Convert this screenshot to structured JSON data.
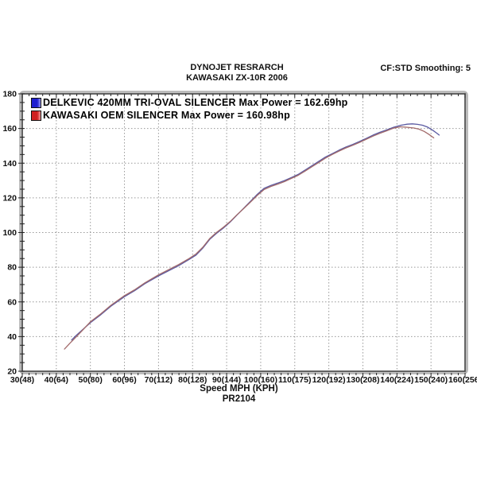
{
  "header": {
    "title_line1": "DYNOJET RESRARCH",
    "title_line2": "KAWASAKI ZX-10R 2006",
    "correction_info": "CF:STD Smoothing: 5"
  },
  "footer": {
    "xlabel": "Speed MPH (KPH)",
    "run_id": "PR2104"
  },
  "legend": {
    "position": "top-left-inside",
    "items": [
      {
        "label": "DELKEVIC 420MM TRI-OVAL SILENCER Max Power  = 162.69hp",
        "swatch_color": "#1f1fd0",
        "swatch_color_light": "#9a9af2"
      },
      {
        "label": "KAWASAKI OEM SILENCER Max Power = 160.98hp",
        "swatch_color": "#d01f1f",
        "swatch_color_light": "#f29a9a"
      }
    ]
  },
  "chart_data": {
    "type": "line",
    "title": "DYNOJET RESRARCH",
    "subtitle": "KAWASAKI ZX-10R 2006",
    "annotations": [
      "CF:STD Smoothing: 5",
      "PR2104"
    ],
    "xlabel": "Speed MPH (KPH)",
    "ylabel": "",
    "x_range": [
      30,
      160
    ],
    "y_range": [
      20,
      180
    ],
    "x_major_step": 10,
    "x_minor_step": 2,
    "y_major_step": 20,
    "y_minor_step": 5,
    "grid": "dotted gray at major ticks",
    "frame_color": "#3c3c3c",
    "bevel_color": "#b4b4b4",
    "grid_color": "#999999",
    "x_ticks": [
      {
        "mph": 30,
        "label": "30(48)"
      },
      {
        "mph": 40,
        "label": "40(64)"
      },
      {
        "mph": 50,
        "label": "50(80)"
      },
      {
        "mph": 60,
        "label": "60(96)"
      },
      {
        "mph": 70,
        "label": "70(112)"
      },
      {
        "mph": 80,
        "label": "80(128)"
      },
      {
        "mph": 90,
        "label": "90(144)"
      },
      {
        "mph": 100,
        "label": "100(160)"
      },
      {
        "mph": 110,
        "label": "110(175)"
      },
      {
        "mph": 120,
        "label": "120(192)"
      },
      {
        "mph": 130,
        "label": "130(208)"
      },
      {
        "mph": 140,
        "label": "140(224)"
      },
      {
        "mph": 150,
        "label": "150(240)"
      },
      {
        "mph": 160,
        "label": "160(256)"
      }
    ],
    "y_ticks": [
      20,
      40,
      60,
      80,
      100,
      120,
      140,
      160,
      180
    ],
    "series": [
      {
        "name": "DELKEVIC 420MM TRI-OVAL SILENCER",
        "max_power_hp": 162.69,
        "color": "#5a5aa2",
        "points": [
          [
            44.5,
            38
          ],
          [
            46,
            41
          ],
          [
            48,
            44.5
          ],
          [
            50,
            48
          ],
          [
            53,
            52.5
          ],
          [
            56,
            57.5
          ],
          [
            60,
            63
          ],
          [
            63,
            66.5
          ],
          [
            66,
            70.5
          ],
          [
            70,
            75
          ],
          [
            73,
            78
          ],
          [
            76,
            81
          ],
          [
            79,
            84.5
          ],
          [
            81,
            87
          ],
          [
            83,
            91
          ],
          [
            85,
            96
          ],
          [
            87,
            99.5
          ],
          [
            89,
            102.5
          ],
          [
            91,
            106
          ],
          [
            93,
            110
          ],
          [
            95,
            114
          ],
          [
            97,
            118
          ],
          [
            99,
            122
          ],
          [
            101,
            125.5
          ],
          [
            103,
            127.2
          ],
          [
            105,
            128.5
          ],
          [
            107,
            130
          ],
          [
            109,
            131.7
          ],
          [
            111,
            133.5
          ],
          [
            113,
            136
          ],
          [
            115,
            138.5
          ],
          [
            117,
            141
          ],
          [
            119,
            143.5
          ],
          [
            121,
            145.5
          ],
          [
            123,
            147.5
          ],
          [
            125,
            149.3
          ],
          [
            127,
            150.8
          ],
          [
            129,
            152.5
          ],
          [
            131,
            154.3
          ],
          [
            133,
            156.2
          ],
          [
            135,
            157.8
          ],
          [
            137,
            159.2
          ],
          [
            139,
            160.7
          ],
          [
            141,
            161.8
          ],
          [
            143,
            162.5
          ],
          [
            144.5,
            162.69
          ],
          [
            146,
            162.4
          ],
          [
            147.5,
            161.9
          ],
          [
            149,
            160.8
          ],
          [
            150.5,
            159
          ],
          [
            151.7,
            157.3
          ],
          [
            152.4,
            156.2
          ]
        ]
      },
      {
        "name": "KAWASAKI OEM SILENCER",
        "max_power_hp": 160.98,
        "color": "#a26a6a",
        "points": [
          [
            42.4,
            32.8
          ],
          [
            44,
            36.2
          ],
          [
            46,
            40.2
          ],
          [
            48,
            44.3
          ],
          [
            50,
            48.5
          ],
          [
            53,
            53
          ],
          [
            56,
            58
          ],
          [
            60,
            63.6
          ],
          [
            63,
            67
          ],
          [
            66,
            71
          ],
          [
            70,
            75.6
          ],
          [
            73,
            78.6
          ],
          [
            76,
            81.6
          ],
          [
            79,
            85
          ],
          [
            81,
            87.6
          ],
          [
            83,
            91.5
          ],
          [
            85,
            96.5
          ],
          [
            87,
            100
          ],
          [
            89,
            103
          ],
          [
            91,
            106.3
          ],
          [
            93,
            110.2
          ],
          [
            95,
            113.8
          ],
          [
            97,
            117.6
          ],
          [
            99,
            121.4
          ],
          [
            101,
            124.8
          ],
          [
            103,
            126.6
          ],
          [
            105,
            127.9
          ],
          [
            107,
            129.4
          ],
          [
            109,
            131.2
          ],
          [
            111,
            133
          ],
          [
            113,
            135.4
          ],
          [
            115,
            137.9
          ],
          [
            117,
            140.4
          ],
          [
            119,
            142.9
          ],
          [
            121,
            145
          ],
          [
            123,
            147
          ],
          [
            125,
            148.8
          ],
          [
            127,
            150.3
          ],
          [
            129,
            152
          ],
          [
            131,
            153.8
          ],
          [
            133,
            155.6
          ],
          [
            135,
            157.2
          ],
          [
            137,
            158.7
          ],
          [
            139,
            160.2
          ],
          [
            141,
            160.98
          ],
          [
            143,
            160.7
          ],
          [
            145,
            160.3
          ],
          [
            146.5,
            159.6
          ],
          [
            148,
            158.3
          ],
          [
            149.3,
            156.7
          ],
          [
            150.8,
            154.6
          ]
        ]
      }
    ]
  }
}
